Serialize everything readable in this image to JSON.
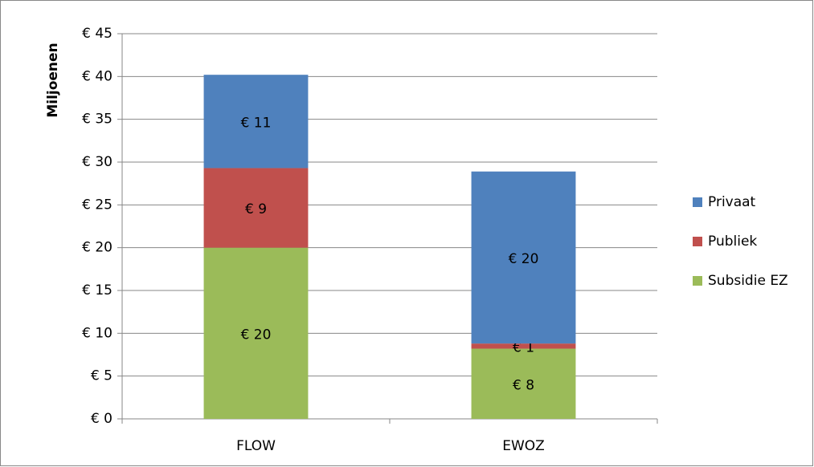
{
  "chart_data": {
    "type": "stacked_bar",
    "y_label": "Miljoenen",
    "categories": [
      "FLOW",
      "EWOZ"
    ],
    "series": [
      {
        "name": "Subsidie EZ",
        "color": "#9bbb59",
        "values": [
          20,
          8.2
        ],
        "value_labels": [
          "€ 20",
          "€ 8"
        ]
      },
      {
        "name": "Publiek",
        "color": "#c0504d",
        "values": [
          9.3,
          0.6
        ],
        "value_labels": [
          "€ 9",
          "€ 1"
        ]
      },
      {
        "name": "Privaat",
        "color": "#4f81bd",
        "values": [
          10.9,
          20.1
        ],
        "value_labels": [
          "€ 11",
          "€ 20"
        ]
      }
    ],
    "ylim": [
      0,
      45
    ],
    "yticks": [
      {
        "value": 0,
        "label": "€ 0"
      },
      {
        "value": 5,
        "label": "€ 5"
      },
      {
        "value": 10,
        "label": "€ 10"
      },
      {
        "value": 15,
        "label": "€ 15"
      },
      {
        "value": 20,
        "label": "€ 20"
      },
      {
        "value": 25,
        "label": "€ 25"
      },
      {
        "value": 30,
        "label": "€ 30"
      },
      {
        "value": 35,
        "label": "€ 35"
      },
      {
        "value": 40,
        "label": "€ 40"
      },
      {
        "value": 45,
        "label": "€ 45"
      }
    ],
    "grid": true,
    "legend": "right"
  }
}
